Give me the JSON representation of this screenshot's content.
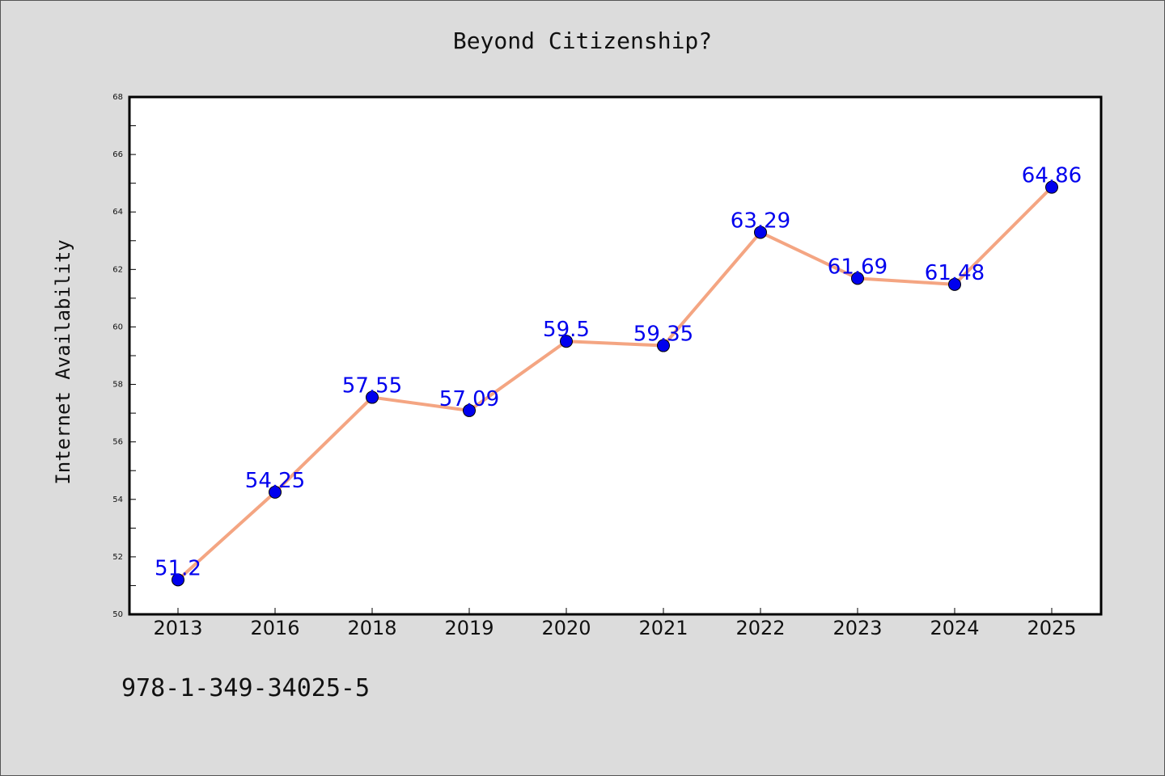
{
  "chart_data": {
    "type": "line",
    "title": "Beyond Citizenship?",
    "xlabel": "",
    "ylabel": "Internet Availability",
    "categories": [
      "2013",
      "2016",
      "2018",
      "2019",
      "2020",
      "2021",
      "2022",
      "2023",
      "2024",
      "2025"
    ],
    "series": [
      {
        "values": [
          51.2,
          54.25,
          57.55,
          57.09,
          59.5,
          59.35,
          63.29,
          61.69,
          61.48,
          64.86
        ],
        "labels": [
          "51.2",
          "54.25",
          "57.55",
          "57.09",
          "59.5",
          "59.35",
          "63.29",
          "61.69",
          "61.48",
          "64.86"
        ],
        "line_color": "#f4a582",
        "marker_color": "#0000ee"
      }
    ],
    "ylim": [
      50,
      68
    ],
    "yticks": [
      50,
      52,
      54,
      56,
      58,
      60,
      62,
      64,
      66,
      68
    ],
    "grid": false,
    "label_color": "#0000ee"
  },
  "footer": {
    "isbn": "978-1-349-34025-5"
  }
}
